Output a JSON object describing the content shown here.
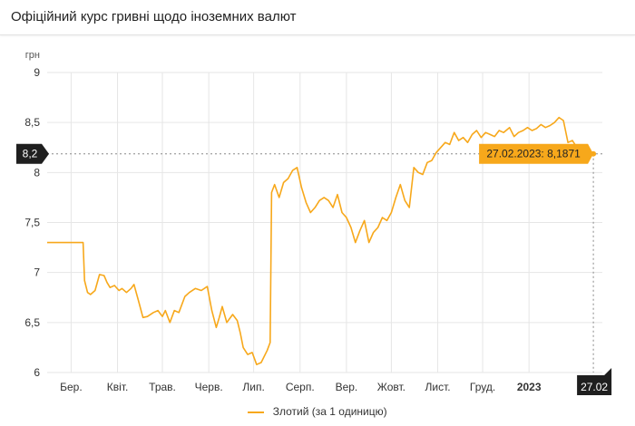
{
  "title": "Офіційний курс гривні щодо іноземних валют",
  "colors": {
    "series": "#f7a81b",
    "tooltip": "#f7a81b",
    "dark": "#1f1f1f",
    "grid": "#e6e6e6"
  },
  "chart_data": {
    "type": "line",
    "ylabel": "грн",
    "ylim": [
      6,
      9
    ],
    "yticks": [
      6,
      6.5,
      7,
      7.5,
      8,
      8.5,
      9
    ],
    "ytick_labels": [
      "6",
      "6,5",
      "7",
      "7,5",
      "8",
      "8,5",
      "9"
    ],
    "xlim": [
      "2022-02-27",
      "2023-03-05"
    ],
    "xticks": [
      {
        "date": "2022-03-15",
        "label": "Бер.",
        "bold": false
      },
      {
        "date": "2022-04-15",
        "label": "Квіт.",
        "bold": false
      },
      {
        "date": "2022-05-15",
        "label": "Трав.",
        "bold": false
      },
      {
        "date": "2022-06-15",
        "label": "Черв.",
        "bold": false
      },
      {
        "date": "2022-07-15",
        "label": "Лип.",
        "bold": false
      },
      {
        "date": "2022-08-15",
        "label": "Серп.",
        "bold": false
      },
      {
        "date": "2022-09-15",
        "label": "Вер.",
        "bold": false
      },
      {
        "date": "2022-10-15",
        "label": "Жовт.",
        "bold": false
      },
      {
        "date": "2022-11-15",
        "label": "Лист.",
        "bold": false
      },
      {
        "date": "2022-12-15",
        "label": "Груд.",
        "bold": false
      },
      {
        "date": "2023-01-15",
        "label": "2023",
        "bold": true
      }
    ],
    "series": [
      {
        "name": "Злотий (за 1 одиницю)",
        "x": [
          "2022-02-27",
          "2022-03-01",
          "2022-03-05",
          "2022-03-10",
          "2022-03-15",
          "2022-03-20",
          "2022-03-23",
          "2022-03-24",
          "2022-03-26",
          "2022-03-28",
          "2022-03-31",
          "2022-04-03",
          "2022-04-06",
          "2022-04-08",
          "2022-04-10",
          "2022-04-13",
          "2022-04-16",
          "2022-04-18",
          "2022-04-21",
          "2022-04-24",
          "2022-04-26",
          "2022-04-29",
          "2022-05-02",
          "2022-05-05",
          "2022-05-09",
          "2022-05-12",
          "2022-05-15",
          "2022-05-17",
          "2022-05-20",
          "2022-05-23",
          "2022-05-26",
          "2022-05-30",
          "2022-06-02",
          "2022-06-06",
          "2022-06-10",
          "2022-06-14",
          "2022-06-17",
          "2022-06-20",
          "2022-06-22",
          "2022-06-24",
          "2022-06-27",
          "2022-07-01",
          "2022-07-04",
          "2022-07-06",
          "2022-07-08",
          "2022-07-11",
          "2022-07-14",
          "2022-07-17",
          "2022-07-20",
          "2022-07-24",
          "2022-07-26",
          "2022-07-27",
          "2022-07-29",
          "2022-08-01",
          "2022-08-04",
          "2022-08-07",
          "2022-08-10",
          "2022-08-13",
          "2022-08-16",
          "2022-08-19",
          "2022-08-22",
          "2022-08-25",
          "2022-08-28",
          "2022-08-31",
          "2022-09-03",
          "2022-09-06",
          "2022-09-09",
          "2022-09-12",
          "2022-09-15",
          "2022-09-18",
          "2022-09-21",
          "2022-09-24",
          "2022-09-27",
          "2022-09-30",
          "2022-10-03",
          "2022-10-06",
          "2022-10-09",
          "2022-10-12",
          "2022-10-15",
          "2022-10-18",
          "2022-10-21",
          "2022-10-24",
          "2022-10-27",
          "2022-10-30",
          "2022-11-02",
          "2022-11-05",
          "2022-11-08",
          "2022-11-11",
          "2022-11-14",
          "2022-11-17",
          "2022-11-20",
          "2022-11-23",
          "2022-11-26",
          "2022-11-29",
          "2022-12-02",
          "2022-12-05",
          "2022-12-08",
          "2022-12-11",
          "2022-12-14",
          "2022-12-17",
          "2022-12-20",
          "2022-12-23",
          "2022-12-26",
          "2022-12-29",
          "2023-01-02",
          "2023-01-05",
          "2023-01-08",
          "2023-01-11",
          "2023-01-14",
          "2023-01-17",
          "2023-01-20",
          "2023-01-23",
          "2023-01-26",
          "2023-01-29",
          "2023-02-01",
          "2023-02-04",
          "2023-02-07",
          "2023-02-10",
          "2023-02-13",
          "2023-02-16",
          "2023-02-19",
          "2023-02-22",
          "2023-02-25",
          "2023-02-27"
        ],
        "y": [
          7.3,
          7.3,
          7.3,
          7.3,
          7.3,
          7.3,
          7.3,
          6.92,
          6.8,
          6.78,
          6.82,
          6.98,
          6.97,
          6.9,
          6.85,
          6.87,
          6.82,
          6.84,
          6.8,
          6.84,
          6.88,
          6.72,
          6.55,
          6.56,
          6.6,
          6.62,
          6.56,
          6.62,
          6.5,
          6.62,
          6.6,
          6.76,
          6.8,
          6.84,
          6.82,
          6.86,
          6.62,
          6.45,
          6.55,
          6.66,
          6.5,
          6.58,
          6.52,
          6.4,
          6.25,
          6.18,
          6.2,
          6.08,
          6.1,
          6.22,
          6.3,
          7.8,
          7.88,
          7.75,
          7.9,
          7.94,
          8.02,
          8.05,
          7.85,
          7.7,
          7.6,
          7.65,
          7.72,
          7.75,
          7.72,
          7.65,
          7.78,
          7.6,
          7.55,
          7.45,
          7.3,
          7.42,
          7.52,
          7.3,
          7.4,
          7.45,
          7.55,
          7.52,
          7.6,
          7.75,
          7.88,
          7.72,
          7.65,
          8.05,
          8.0,
          7.98,
          8.1,
          8.12,
          8.2,
          8.25,
          8.3,
          8.28,
          8.4,
          8.32,
          8.35,
          8.3,
          8.38,
          8.42,
          8.35,
          8.4,
          8.38,
          8.36,
          8.42,
          8.4,
          8.45,
          8.36,
          8.4,
          8.42,
          8.45,
          8.42,
          8.44,
          8.48,
          8.45,
          8.47,
          8.5,
          8.55,
          8.52,
          8.3,
          8.32,
          8.25,
          8.22,
          8.2,
          8.19,
          8.1871
        ]
      }
    ],
    "highlight": {
      "date": "2023-02-27",
      "y_label": "8,2",
      "tooltip": "27.02.2023: 8,1871",
      "x_label": "27.02"
    }
  }
}
